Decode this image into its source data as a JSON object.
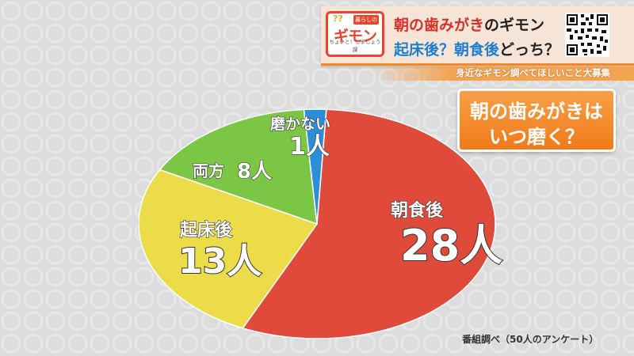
{
  "header": {
    "logo_question": "??",
    "logo_side": "暮らしの",
    "logo_title": "ギモン",
    "logo_sub": "ちょいと！しましょう課",
    "title_line1_red": "朝の歯みがき",
    "title_line1_black": "のギモン",
    "title_line2_blue": "起床後？朝食後",
    "title_line2_black": "どっち？"
  },
  "subtitle": "身近なギモン調べてほしいこと大募集",
  "question": {
    "line1": "朝の歯みがきは",
    "line2": "いつ磨く？"
  },
  "source": "番組調べ（50人のアンケート）",
  "colors": {
    "after_breakfast": "#e04a3a",
    "after_waking": "#ecdc4a",
    "both": "#7cc646",
    "none": "#2a8fd8"
  },
  "chart_data": {
    "type": "pie",
    "total_respondents": 50,
    "slices": [
      {
        "label": "朝食後",
        "value": 28,
        "value_text": "28人",
        "color": "#e04a3a"
      },
      {
        "label": "起床後",
        "value": 13,
        "value_text": "13人",
        "color": "#ecdc4a"
      },
      {
        "label": "両方",
        "value": 8,
        "value_text": "8人",
        "color": "#7cc646"
      },
      {
        "label": "磨かない",
        "value": 1,
        "value_text": "1人",
        "color": "#2a8fd8"
      }
    ]
  }
}
